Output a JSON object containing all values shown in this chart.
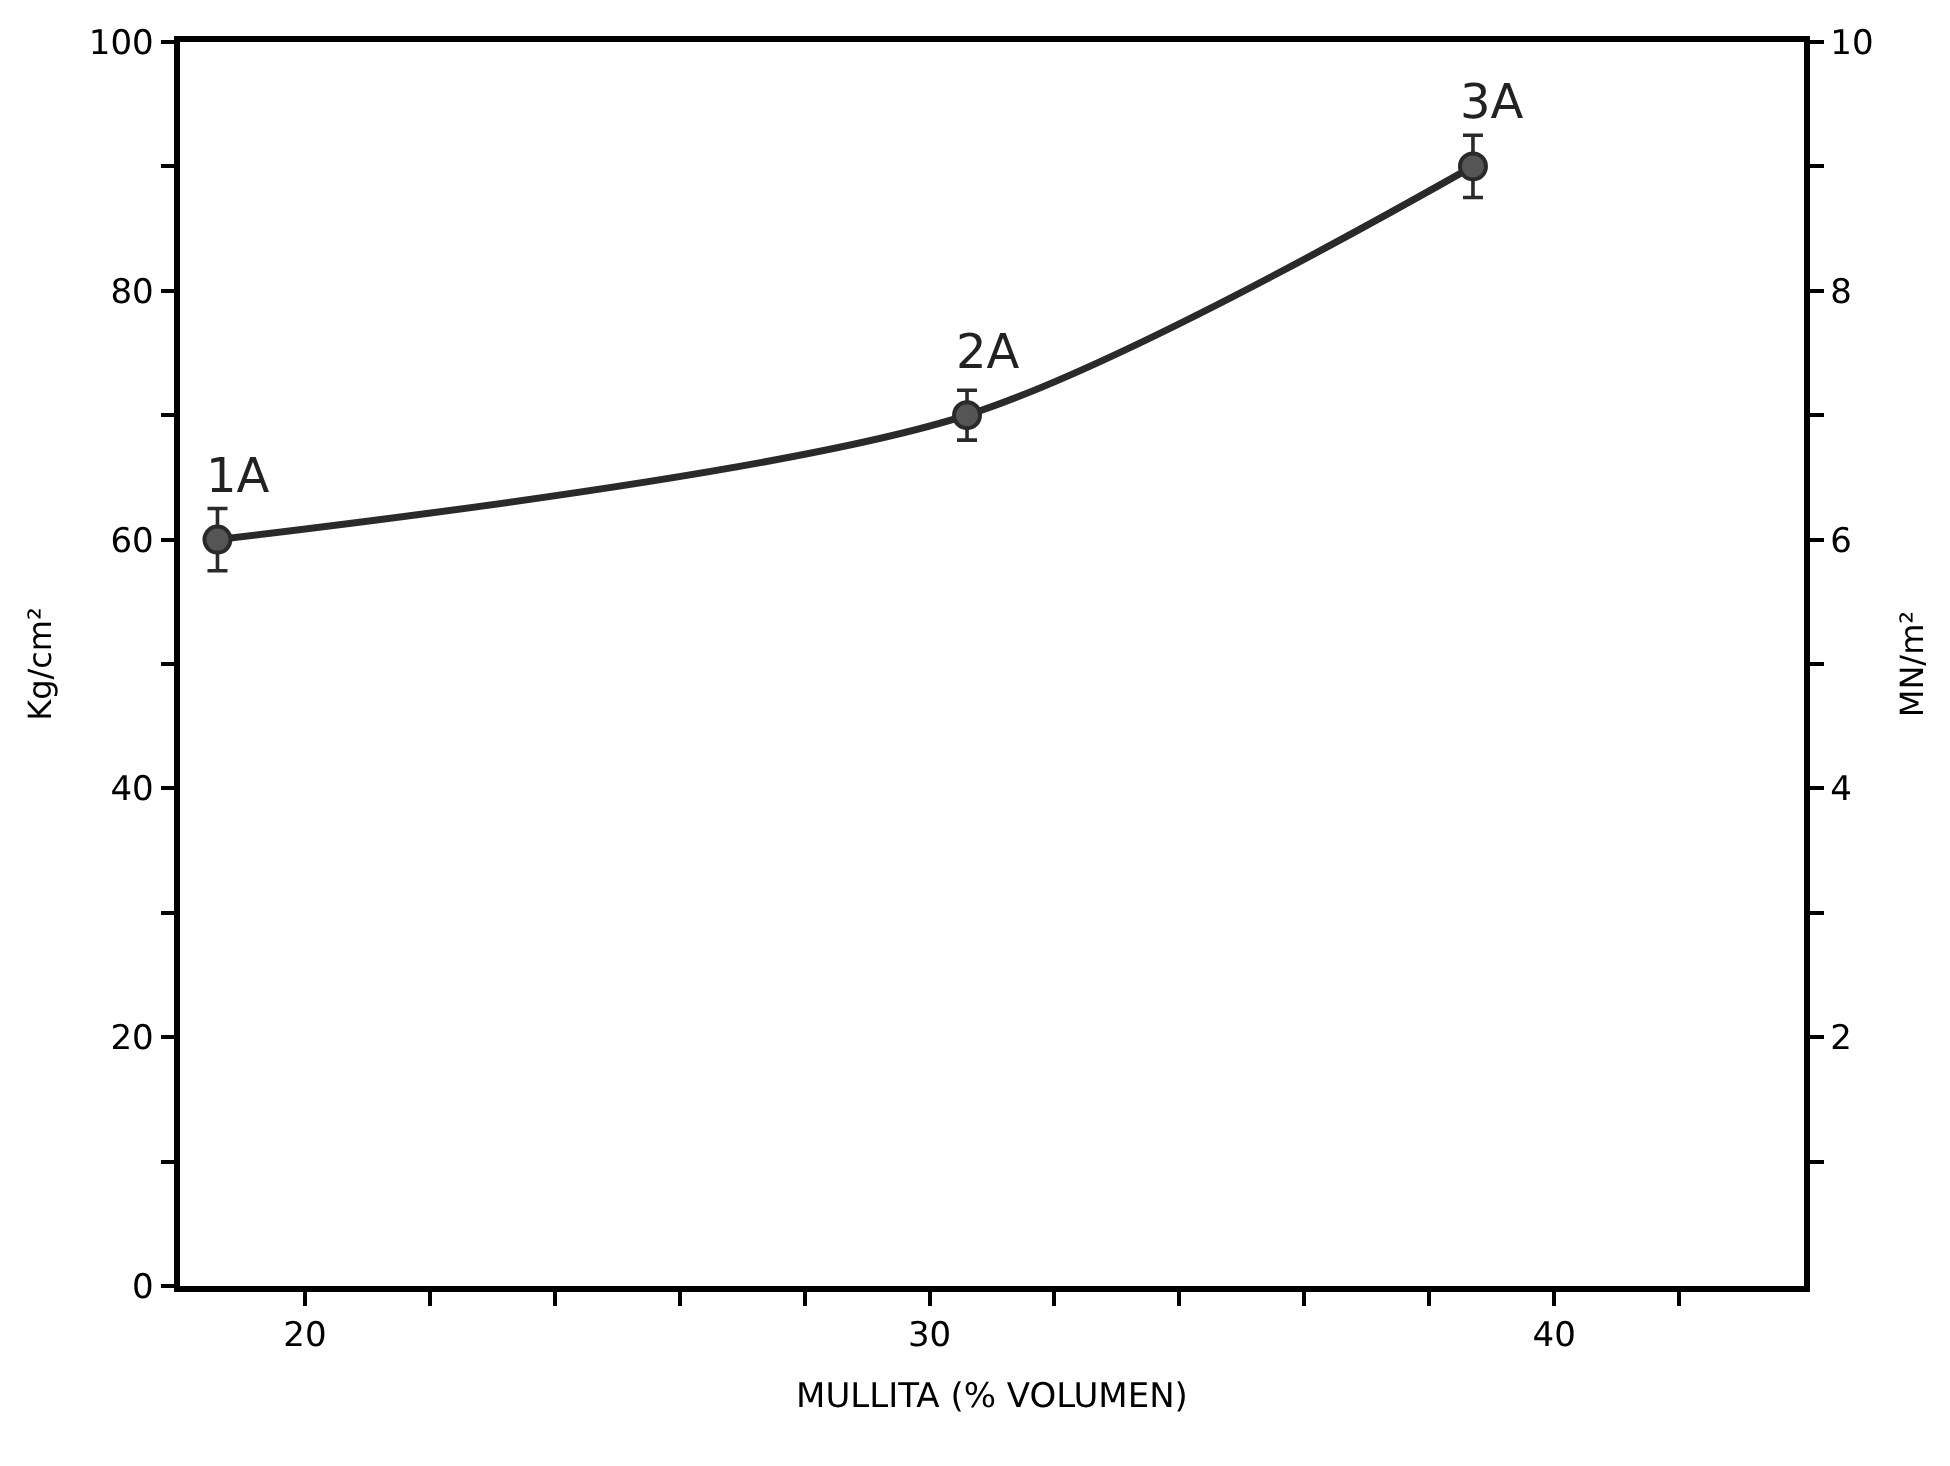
{
  "chart_data": {
    "type": "line",
    "x": [
      18.6,
      30.6,
      38.7
    ],
    "series": [
      {
        "color": "#2a2a2a",
        "values": [
          60,
          70,
          90
        ],
        "errors": [
          2.5,
          2,
          2.5
        ]
      }
    ],
    "xlabel": "MULLITA (% VOLUMEN)",
    "ylabel": "Kg/cm²",
    "y2label": "MN/m²",
    "xlim": [
      18,
      44
    ],
    "xticks": [
      20,
      {
        "value": 22,
        "label": null
      },
      {
        "value": 24,
        "label": null
      },
      {
        "value": 26,
        "label": null
      },
      {
        "value": 28,
        "label": null
      },
      30,
      {
        "value": 32,
        "label": null
      },
      {
        "value": 34,
        "label": null
      },
      {
        "value": 36,
        "label": null
      },
      {
        "value": 38,
        "label": null
      },
      40,
      {
        "value": 42,
        "label": null
      }
    ],
    "ylim": [
      0,
      100
    ],
    "yticks": [
      0,
      {
        "value": 10,
        "label": null
      },
      20,
      {
        "value": 30,
        "label": null
      },
      40,
      {
        "value": 50,
        "label": null
      },
      60,
      {
        "value": 70,
        "label": null
      },
      80,
      {
        "value": 90,
        "label": null
      },
      100
    ],
    "y2lim": [
      0,
      10
    ],
    "y2ticks": [
      {
        "value": 1,
        "label": null
      },
      2,
      {
        "value": 3,
        "label": null
      },
      4,
      {
        "value": 5,
        "label": null
      },
      6,
      {
        "value": 7,
        "label": null
      },
      8,
      {
        "value": 9,
        "label": null
      },
      10
    ],
    "annotations": [
      {
        "text": "1A",
        "x": 18.6,
        "y": 60
      },
      {
        "text": "2A",
        "x": 30.6,
        "y": 70
      },
      {
        "text": "3A",
        "x": 38.7,
        "y": 90
      }
    ],
    "marker": "circle",
    "line_style": "solid"
  }
}
